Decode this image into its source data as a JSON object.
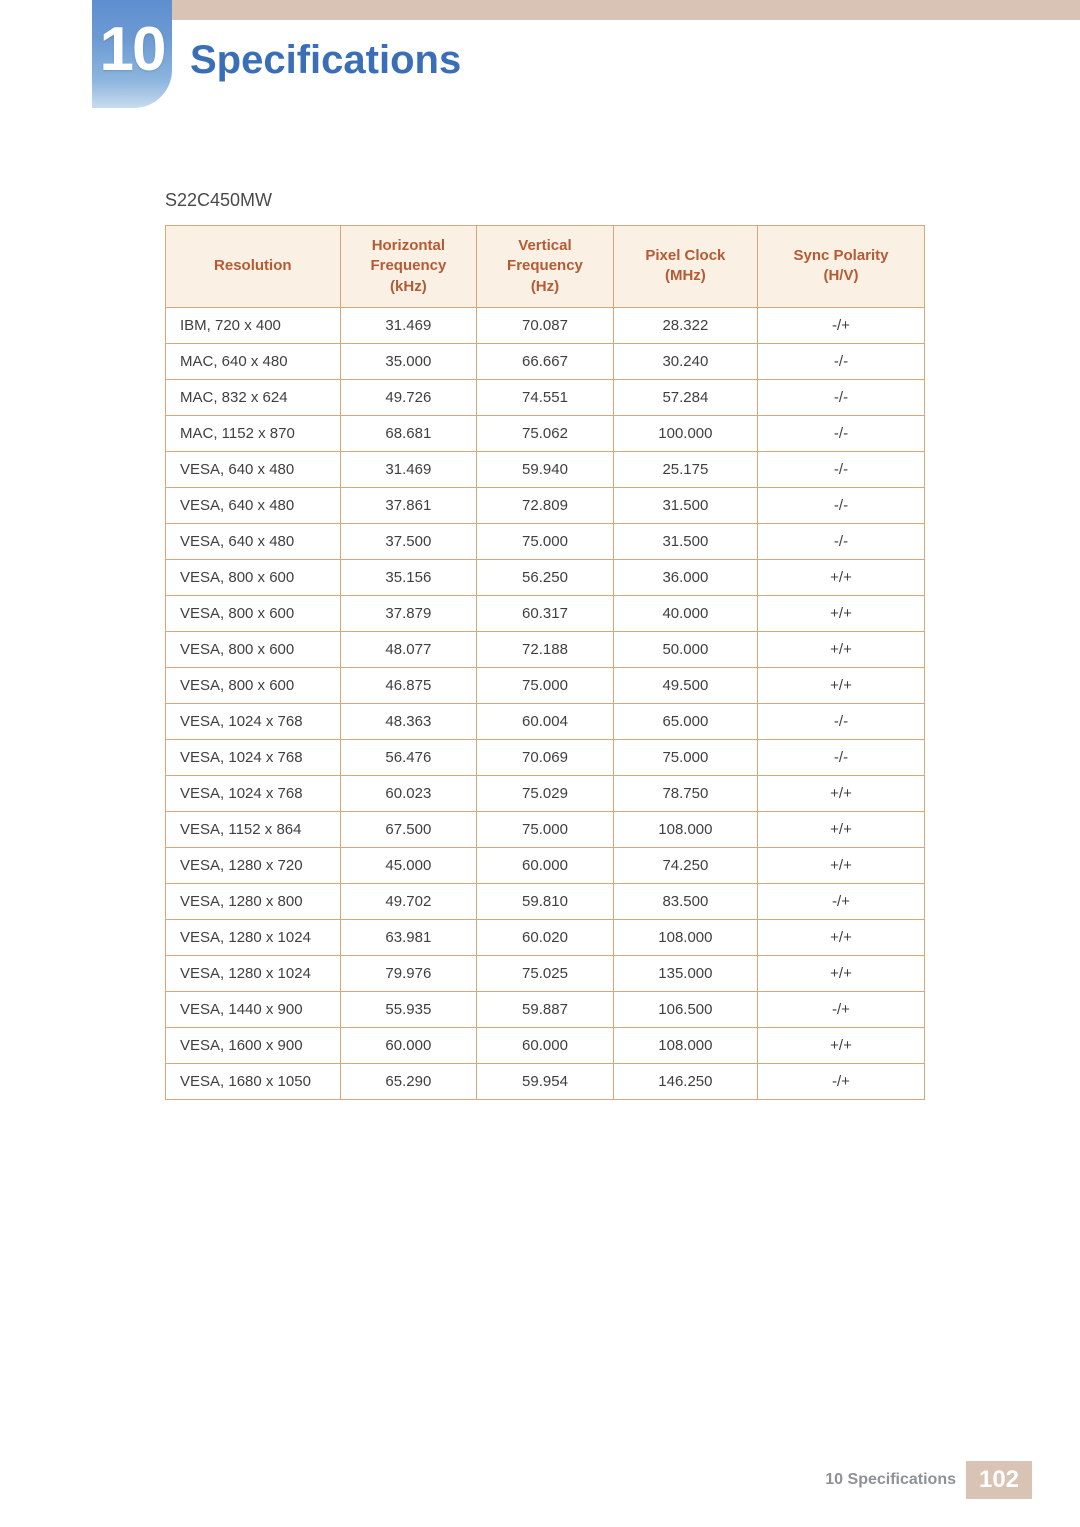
{
  "chapter": {
    "number": "10",
    "title": "Specifications"
  },
  "model": "S22C450MW",
  "table": {
    "type": "table",
    "header_bg": "#fbf0e4",
    "header_text_color": "#b45b35",
    "border_color": "#d9a679",
    "columns": [
      {
        "label_line1": "Resolution",
        "label_line2": ""
      },
      {
        "label_line1": "Horizontal",
        "label_line2": "Frequency",
        "label_line3": "(kHz)"
      },
      {
        "label_line1": "Vertical",
        "label_line2": "Frequency",
        "label_line3": "(Hz)"
      },
      {
        "label_line1": "Pixel Clock",
        "label_line2": "(MHz)"
      },
      {
        "label_line1": "Sync Polarity",
        "label_line2": "(H/V)"
      }
    ],
    "rows": [
      [
        "IBM, 720 x 400",
        "31.469",
        "70.087",
        "28.322",
        "-/+"
      ],
      [
        "MAC, 640 x 480",
        "35.000",
        "66.667",
        "30.240",
        "-/-"
      ],
      [
        "MAC, 832 x 624",
        "49.726",
        "74.551",
        "57.284",
        "-/-"
      ],
      [
        "MAC, 1152 x 870",
        "68.681",
        "75.062",
        "100.000",
        "-/-"
      ],
      [
        "VESA, 640 x 480",
        "31.469",
        "59.940",
        "25.175",
        "-/-"
      ],
      [
        "VESA, 640 x 480",
        "37.861",
        "72.809",
        "31.500",
        "-/-"
      ],
      [
        "VESA, 640 x 480",
        "37.500",
        "75.000",
        "31.500",
        "-/-"
      ],
      [
        "VESA, 800 x 600",
        "35.156",
        "56.250",
        "36.000",
        "+/+"
      ],
      [
        "VESA, 800 x 600",
        "37.879",
        "60.317",
        "40.000",
        "+/+"
      ],
      [
        "VESA, 800 x 600",
        "48.077",
        "72.188",
        "50.000",
        "+/+"
      ],
      [
        "VESA, 800 x 600",
        "46.875",
        "75.000",
        "49.500",
        "+/+"
      ],
      [
        "VESA, 1024 x 768",
        "48.363",
        "60.004",
        "65.000",
        "-/-"
      ],
      [
        "VESA, 1024 x 768",
        "56.476",
        "70.069",
        "75.000",
        "-/-"
      ],
      [
        "VESA, 1024 x 768",
        "60.023",
        "75.029",
        "78.750",
        "+/+"
      ],
      [
        "VESA, 1152 x 864",
        "67.500",
        "75.000",
        "108.000",
        "+/+"
      ],
      [
        "VESA, 1280 x 720",
        "45.000",
        "60.000",
        "74.250",
        "+/+"
      ],
      [
        "VESA, 1280 x 800",
        "49.702",
        "59.810",
        "83.500",
        "-/+"
      ],
      [
        "VESA, 1280 x 1024",
        "63.981",
        "60.020",
        "108.000",
        "+/+"
      ],
      [
        "VESA, 1280 x 1024",
        "79.976",
        "75.025",
        "135.000",
        "+/+"
      ],
      [
        "VESA, 1440 x 900",
        "55.935",
        "59.887",
        "106.500",
        "-/+"
      ],
      [
        "VESA, 1600 x 900",
        "60.000",
        "60.000",
        "108.000",
        "+/+"
      ],
      [
        "VESA, 1680 x 1050",
        "65.290",
        "59.954",
        "146.250",
        "-/+"
      ]
    ]
  },
  "footer": {
    "text": "10 Specifications",
    "page_number": "102"
  },
  "colors": {
    "banner": "#d8c3b5",
    "chapter_badge_top": "#5f8ecf",
    "chapter_title": "#3a6fb8",
    "footer_text": "#8e9195"
  }
}
